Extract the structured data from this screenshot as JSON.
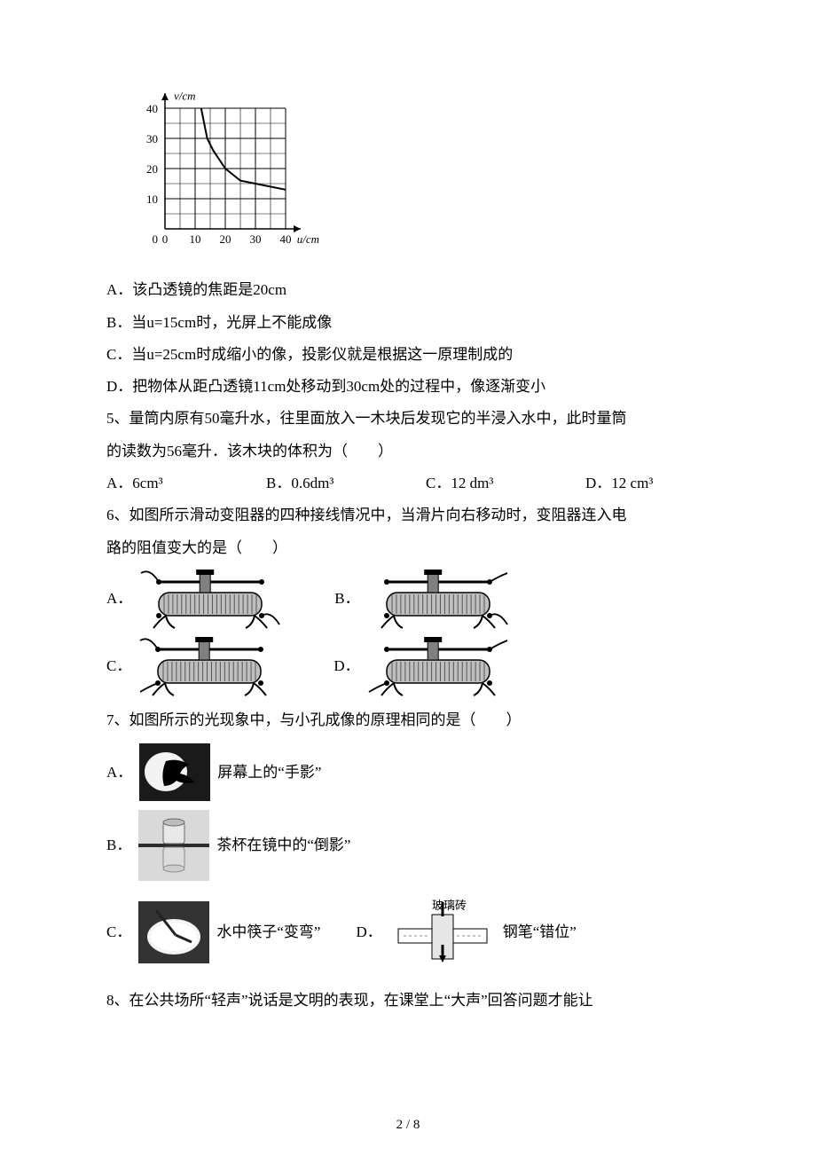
{
  "chart": {
    "type": "line",
    "x_label": "u/cm",
    "y_label": "v/cm",
    "x_ticks": [
      0,
      10,
      20,
      30,
      40
    ],
    "y_ticks": [
      0,
      10,
      20,
      30,
      40
    ],
    "xlim": [
      0,
      45
    ],
    "ylim": [
      0,
      45
    ],
    "grid_color": "#000000",
    "background_color": "#ffffff",
    "axis_color": "#000000",
    "curve_color": "#000000",
    "curve_width": 2,
    "label_fontsize": 13,
    "tick_fontsize": 13,
    "points_u": [
      12,
      14,
      16,
      20,
      25,
      30,
      40
    ],
    "points_v": [
      40,
      30,
      26,
      20,
      16,
      15,
      13
    ]
  },
  "q4": {
    "A": "A．该凸透镜的焦距是20cm",
    "B": "B．当u=15cm时，光屏上不能成像",
    "C": "C．当u=25cm时成缩小的像，投影仪就是根据这一原理制成的",
    "D": "D．把物体从距凸透镜11cm处移动到30cm处的过程中，像逐渐变小"
  },
  "q5": {
    "stem1": "5、量筒内原有50毫升水，往里面放入一木块后发现它的半浸入水中，此时量筒",
    "stem2": "的读数为56毫升．该木块的体积为（　　）",
    "A": "A．6cm³",
    "B": "B．0.6dm³",
    "C": "C．12 dm³",
    "D": "D．12 cm³"
  },
  "q6": {
    "stem1": "6、如图所示滑动变阻器的四种接线情况中，当滑片向右移动时，变阻器连入电",
    "stem2": "路的阻值变大的是（　　）",
    "A": "A．",
    "B": "B．",
    "C": "C．",
    "D": "D．",
    "rheostat": {
      "body_fill": "#bfbfbf",
      "body_stroke": "#000000",
      "wire_stroke": "#000000",
      "slider_fill": "#808080",
      "width": 160,
      "height": 60
    }
  },
  "q7": {
    "stem": "7、如图所示的光现象中，与小孔成像的原理相同的是（　　）",
    "A": {
      "prefix": "A．",
      "text": "屏幕上的“手影”"
    },
    "B": {
      "prefix": "B．",
      "text": "茶杯在镜中的“倒影”"
    },
    "C": {
      "prefix": "C．",
      "text": "水中筷子“变弯”"
    },
    "D": {
      "prefix": "D．",
      "label": "玻璃砖",
      "text": "钢笔“错位”"
    },
    "thumb": {
      "w": 80,
      "h": 65,
      "bg": "#4d4d4d"
    }
  },
  "q8": {
    "stem": "8、在公共场所“轻声”说话是文明的表现，在课堂上“大声”回答问题才能让"
  },
  "page_num": "2 / 8"
}
